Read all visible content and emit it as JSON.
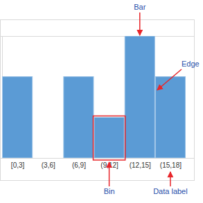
{
  "chart_data": {
    "type": "histogram",
    "categories": [
      "[0,3]",
      "(3,6]",
      "(6,9]",
      "(9,12]",
      "(12,15]",
      "(15,18]"
    ],
    "bins": [
      0,
      3,
      6,
      9,
      12,
      15,
      18
    ],
    "values": [
      2,
      0,
      2,
      1,
      3,
      2
    ],
    "color": "#5b9bd5",
    "xlim": [
      0,
      18
    ],
    "ylim": [
      0,
      3
    ],
    "yticks": [
      0,
      3
    ],
    "grid": true,
    "tick_labels": "x",
    "annotations": [
      {
        "text": "Bar"
      },
      {
        "text": "Edge"
      },
      {
        "text": "Bin"
      },
      {
        "text": "Data label"
      }
    ]
  }
}
